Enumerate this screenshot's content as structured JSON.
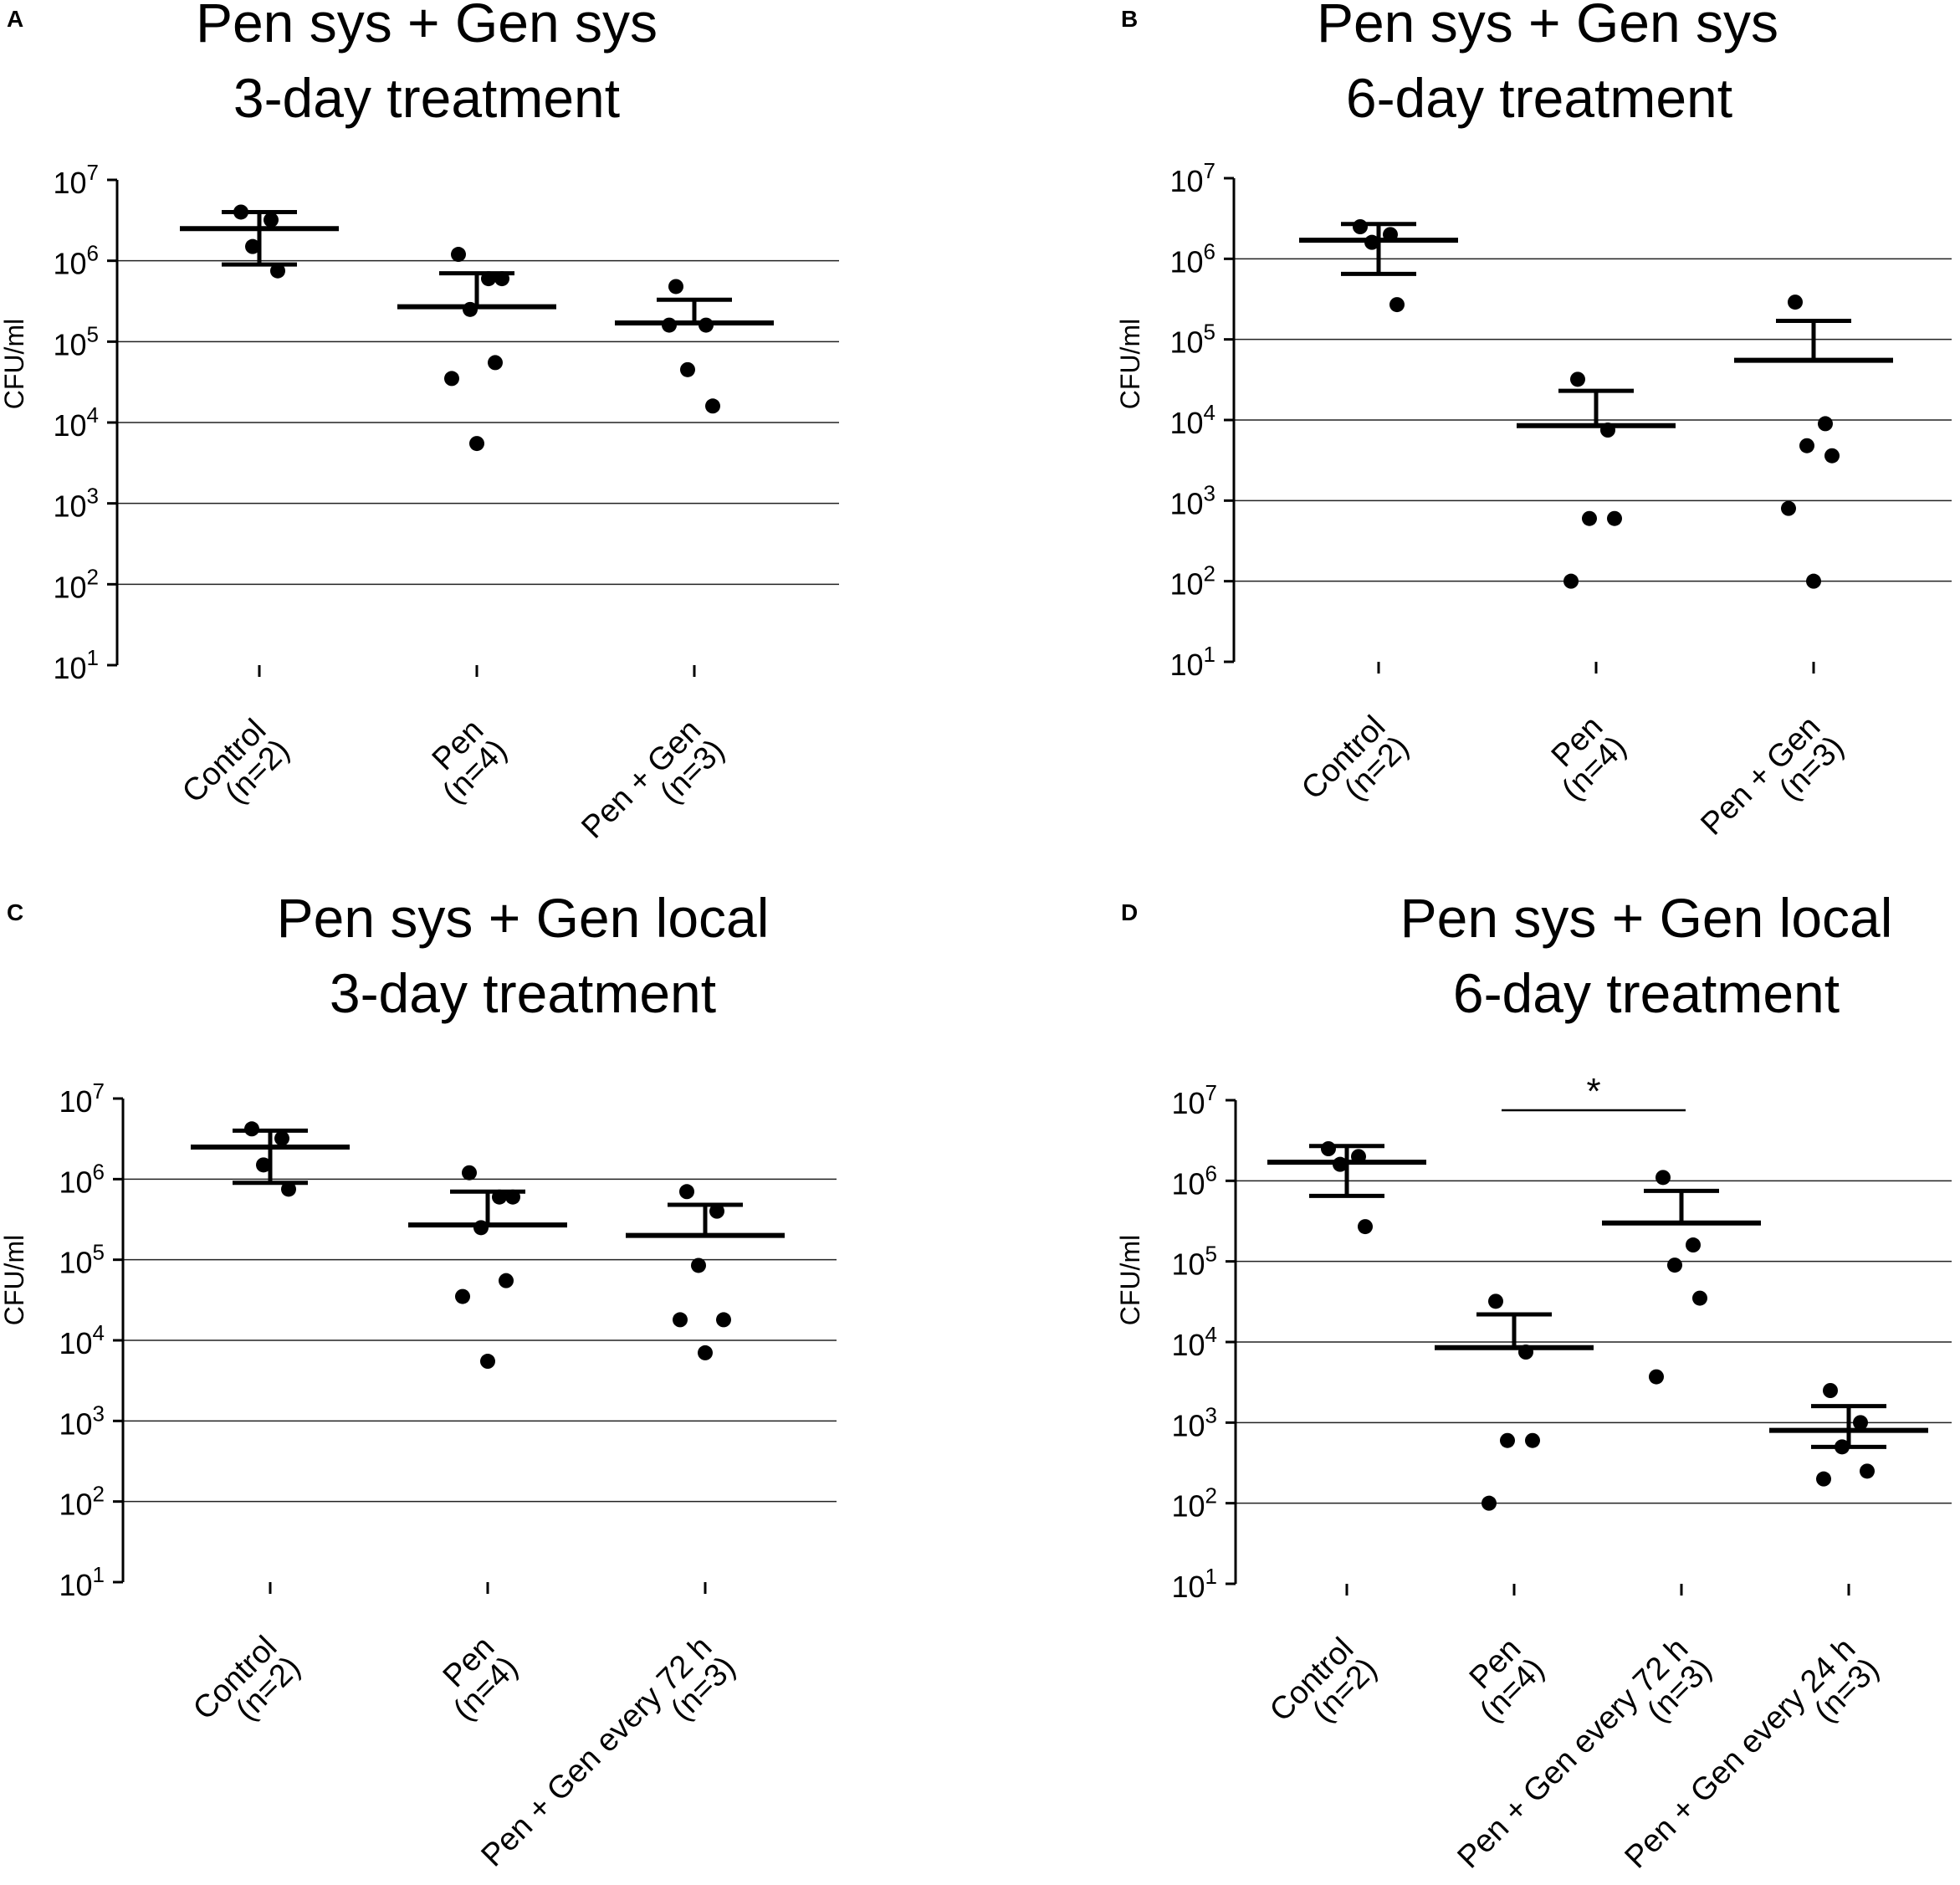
{
  "figure": {
    "ylabel": "CFU/ml",
    "y_ticks": [
      1,
      2,
      3,
      4,
      5,
      6,
      7
    ],
    "significance_symbol": "*"
  },
  "chart_data": [
    {
      "panel": "A",
      "type": "scatter",
      "title_lines": [
        "Pen sys + Gen sys",
        "3-day treatment"
      ],
      "ylabel": "CFU/ml",
      "yscale": "log10",
      "ylim": [
        10,
        10000000
      ],
      "grid": true,
      "categories": [
        {
          "name": "Control",
          "n": "(n=2)"
        },
        {
          "name": "Pen",
          "n": "(n=4)"
        },
        {
          "name": "Pen + Gen",
          "n": "(n=3)"
        }
      ],
      "points": [
        [
          4000000,
          3200000,
          1500000,
          750000
        ],
        [
          1200000,
          600000,
          250000,
          55000,
          35000,
          5500,
          600000
        ],
        [
          480000,
          160000,
          45000,
          16000,
          160000
        ]
      ],
      "mean": [
        2500000,
        270000,
        170000
      ],
      "err_upper": [
        4000000,
        700000,
        330000
      ],
      "err_lower": [
        900000,
        null,
        null
      ]
    },
    {
      "panel": "B",
      "type": "scatter",
      "title_lines": [
        "Pen sys + Gen sys",
        "6-day treatment"
      ],
      "ylabel": "CFU/ml",
      "yscale": "log10",
      "ylim": [
        10,
        10000000
      ],
      "grid": true,
      "categories": [
        {
          "name": "Control",
          "n": "(n=2)"
        },
        {
          "name": "Pen",
          "n": "(n=4)"
        },
        {
          "name": "Pen + Gen",
          "n": "(n=3)"
        }
      ],
      "points": [
        [
          2500000,
          2000000,
          1600000,
          270000
        ],
        [
          32000,
          7500,
          600,
          600,
          100
        ],
        [
          290000,
          9000,
          4800,
          3600,
          800,
          100
        ]
      ],
      "mean": [
        1700000,
        8500,
        55000
      ],
      "err_upper": [
        2700000,
        23000,
        170000
      ],
      "err_lower": [
        650000,
        null,
        null
      ]
    },
    {
      "panel": "C",
      "type": "scatter",
      "title_lines": [
        "Pen sys + Gen local",
        "3-day treatment"
      ],
      "ylabel": "CFU/ml",
      "yscale": "log10",
      "ylim": [
        10,
        10000000
      ],
      "grid": true,
      "categories": [
        {
          "name": "Control",
          "n": "(n=2)"
        },
        {
          "name": "Pen",
          "n": "(n=4)"
        },
        {
          "name": "Pen + Gen every 72 h",
          "n": "(n=3)"
        }
      ],
      "points": [
        [
          4200000,
          3200000,
          1500000,
          750000
        ],
        [
          1200000,
          600000,
          250000,
          55000,
          35000,
          5500,
          600000
        ],
        [
          700000,
          400000,
          85000,
          18000,
          18000,
          7000
        ]
      ],
      "mean": [
        2500000,
        270000,
        200000
      ],
      "err_upper": [
        4000000,
        700000,
        480000
      ],
      "err_lower": [
        900000,
        null,
        null
      ]
    },
    {
      "panel": "D",
      "type": "scatter",
      "title_lines": [
        "Pen sys + Gen local",
        "6-day treatment"
      ],
      "ylabel": "CFU/ml",
      "yscale": "log10",
      "ylim": [
        10,
        10000000
      ],
      "grid": true,
      "categories": [
        {
          "name": "Control",
          "n": "(n=2)"
        },
        {
          "name": "Pen",
          "n": "(n=4)"
        },
        {
          "name": "Pen + Gen every 72 h",
          "n": "(n=3)"
        },
        {
          "name": "Pen + Gen every 24 h",
          "n": "(n=3)"
        }
      ],
      "points": [
        [
          2500000,
          2000000,
          1600000,
          270000
        ],
        [
          32000,
          7500,
          600,
          600,
          100
        ],
        [
          1100000,
          160000,
          90000,
          35000,
          3700
        ],
        [
          2500,
          1000,
          500,
          250,
          200
        ]
      ],
      "mean": [
        1700000,
        8500,
        300000,
        800
      ],
      "err_upper": [
        2700000,
        22000,
        750000,
        1600
      ],
      "err_lower": [
        650000,
        null,
        null,
        500
      ],
      "significance": {
        "between": [
          1,
          2
        ],
        "label": "*"
      }
    }
  ]
}
